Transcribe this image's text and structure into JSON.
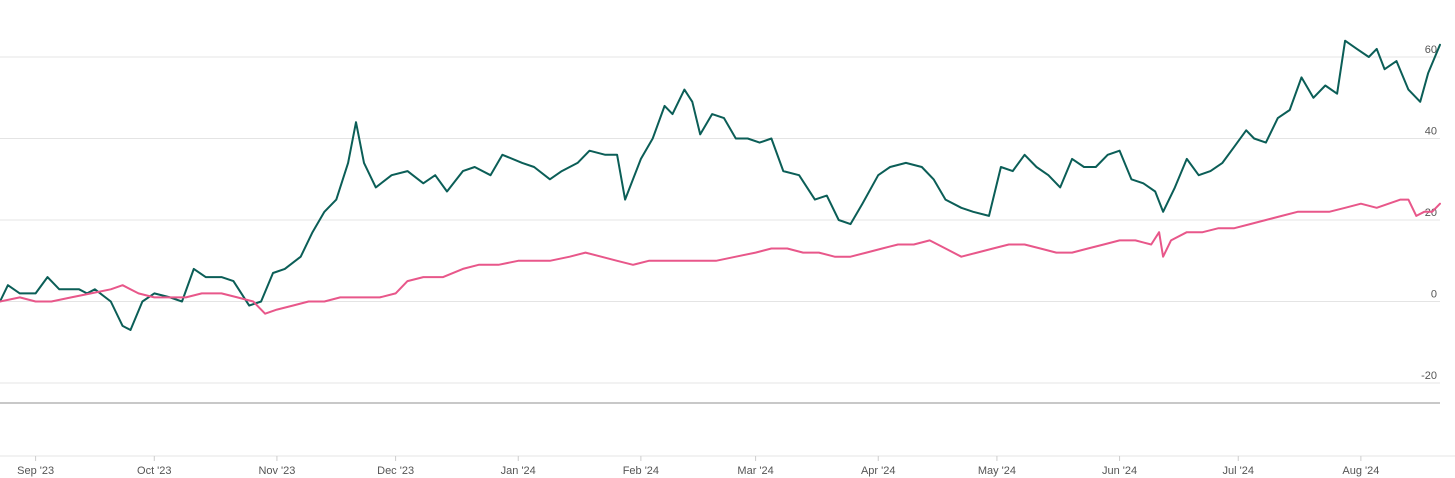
{
  "chart_data": {
    "type": "line",
    "yaxis": {
      "side": "right",
      "ticks": [
        60,
        40,
        20,
        0,
        -20
      ],
      "ylim": [
        -20,
        60
      ],
      "grid": true
    },
    "xaxis": {
      "ticks": [
        {
          "label": "Sep '23",
          "date": "2023-09-01"
        },
        {
          "label": "Oct '23",
          "date": "2023-10-01"
        },
        {
          "label": "Nov '23",
          "date": "2023-11-01"
        },
        {
          "label": "Dec '23",
          "date": "2023-12-01"
        },
        {
          "label": "Jan '24",
          "date": "2024-01-01"
        },
        {
          "label": "Feb '24",
          "date": "2024-02-01"
        },
        {
          "label": "Mar '24",
          "date": "2024-03-01"
        },
        {
          "label": "Apr '24",
          "date": "2024-04-01"
        },
        {
          "label": "May '24",
          "date": "2024-05-01"
        },
        {
          "label": "Jun '24",
          "date": "2024-06-01"
        },
        {
          "label": "Jul '24",
          "date": "2024-07-01"
        },
        {
          "label": "Aug '24",
          "date": "2024-08-01"
        }
      ],
      "range": [
        "2023-08-23",
        "2024-08-21"
      ]
    },
    "series": [
      {
        "color": "#0b5e57",
        "points": [
          [
            "2023-08-23",
            0
          ],
          [
            "2023-08-25",
            4
          ],
          [
            "2023-08-28",
            2
          ],
          [
            "2023-09-01",
            2
          ],
          [
            "2023-09-04",
            6
          ],
          [
            "2023-09-07",
            3
          ],
          [
            "2023-09-12",
            3
          ],
          [
            "2023-09-14",
            2
          ],
          [
            "2023-09-16",
            3
          ],
          [
            "2023-09-20",
            0
          ],
          [
            "2023-09-23",
            -6
          ],
          [
            "2023-09-25",
            -7
          ],
          [
            "2023-09-28",
            0
          ],
          [
            "2023-10-01",
            2
          ],
          [
            "2023-10-05",
            1
          ],
          [
            "2023-10-08",
            0
          ],
          [
            "2023-10-11",
            8
          ],
          [
            "2023-10-14",
            6
          ],
          [
            "2023-10-18",
            6
          ],
          [
            "2023-10-21",
            5
          ],
          [
            "2023-10-25",
            -1
          ],
          [
            "2023-10-28",
            0
          ],
          [
            "2023-10-31",
            7
          ],
          [
            "2023-11-03",
            8
          ],
          [
            "2023-11-07",
            11
          ],
          [
            "2023-11-10",
            17
          ],
          [
            "2023-11-13",
            22
          ],
          [
            "2023-11-16",
            25
          ],
          [
            "2023-11-19",
            34
          ],
          [
            "2023-11-21",
            44
          ],
          [
            "2023-11-23",
            34
          ],
          [
            "2023-11-26",
            28
          ],
          [
            "2023-11-30",
            31
          ],
          [
            "2023-12-04",
            32
          ],
          [
            "2023-12-08",
            29
          ],
          [
            "2023-12-11",
            31
          ],
          [
            "2023-12-14",
            27
          ],
          [
            "2023-12-18",
            32
          ],
          [
            "2023-12-21",
            33
          ],
          [
            "2023-12-25",
            31
          ],
          [
            "2023-12-28",
            36
          ],
          [
            "2024-01-02",
            34
          ],
          [
            "2024-01-05",
            33
          ],
          [
            "2024-01-09",
            30
          ],
          [
            "2024-01-12",
            32
          ],
          [
            "2024-01-16",
            34
          ],
          [
            "2024-01-19",
            37
          ],
          [
            "2024-01-23",
            36
          ],
          [
            "2024-01-26",
            36
          ],
          [
            "2024-01-28",
            25
          ],
          [
            "2024-02-01",
            35
          ],
          [
            "2024-02-04",
            40
          ],
          [
            "2024-02-07",
            48
          ],
          [
            "2024-02-09",
            46
          ],
          [
            "2024-02-12",
            52
          ],
          [
            "2024-02-14",
            49
          ],
          [
            "2024-02-16",
            41
          ],
          [
            "2024-02-19",
            46
          ],
          [
            "2024-02-22",
            45
          ],
          [
            "2024-02-25",
            40
          ],
          [
            "2024-02-28",
            40
          ],
          [
            "2024-03-02",
            39
          ],
          [
            "2024-03-05",
            40
          ],
          [
            "2024-03-08",
            32
          ],
          [
            "2024-03-12",
            31
          ],
          [
            "2024-03-16",
            25
          ],
          [
            "2024-03-19",
            26
          ],
          [
            "2024-03-22",
            20
          ],
          [
            "2024-03-25",
            19
          ],
          [
            "2024-03-28",
            24
          ],
          [
            "2024-04-01",
            31
          ],
          [
            "2024-04-04",
            33
          ],
          [
            "2024-04-08",
            34
          ],
          [
            "2024-04-12",
            33
          ],
          [
            "2024-04-15",
            30
          ],
          [
            "2024-04-18",
            25
          ],
          [
            "2024-04-22",
            23
          ],
          [
            "2024-04-25",
            22
          ],
          [
            "2024-04-29",
            21
          ],
          [
            "2024-05-02",
            33
          ],
          [
            "2024-05-05",
            32
          ],
          [
            "2024-05-08",
            36
          ],
          [
            "2024-05-11",
            33
          ],
          [
            "2024-05-14",
            31
          ],
          [
            "2024-05-17",
            28
          ],
          [
            "2024-05-20",
            35
          ],
          [
            "2024-05-23",
            33
          ],
          [
            "2024-05-26",
            33
          ],
          [
            "2024-05-29",
            36
          ],
          [
            "2024-06-01",
            37
          ],
          [
            "2024-06-04",
            30
          ],
          [
            "2024-06-07",
            29
          ],
          [
            "2024-06-10",
            27
          ],
          [
            "2024-06-12",
            22
          ],
          [
            "2024-06-15",
            28
          ],
          [
            "2024-06-18",
            35
          ],
          [
            "2024-06-21",
            31
          ],
          [
            "2024-06-24",
            32
          ],
          [
            "2024-06-27",
            34
          ],
          [
            "2024-06-30",
            38
          ],
          [
            "2024-07-03",
            42
          ],
          [
            "2024-07-05",
            40
          ],
          [
            "2024-07-08",
            39
          ],
          [
            "2024-07-11",
            45
          ],
          [
            "2024-07-14",
            47
          ],
          [
            "2024-07-17",
            55
          ],
          [
            "2024-07-20",
            50
          ],
          [
            "2024-07-23",
            53
          ],
          [
            "2024-07-26",
            51
          ],
          [
            "2024-07-28",
            64
          ],
          [
            "2024-07-31",
            62
          ],
          [
            "2024-08-03",
            60
          ],
          [
            "2024-08-05",
            62
          ],
          [
            "2024-08-07",
            57
          ],
          [
            "2024-08-10",
            59
          ],
          [
            "2024-08-13",
            52
          ],
          [
            "2024-08-16",
            49
          ],
          [
            "2024-08-18",
            56
          ],
          [
            "2024-08-21",
            63
          ]
        ]
      },
      {
        "color": "#e8578a",
        "points": [
          [
            "2023-08-23",
            0
          ],
          [
            "2023-08-28",
            1
          ],
          [
            "2023-09-01",
            0
          ],
          [
            "2023-09-05",
            0
          ],
          [
            "2023-09-10",
            1
          ],
          [
            "2023-09-15",
            2
          ],
          [
            "2023-09-20",
            3
          ],
          [
            "2023-09-23",
            4
          ],
          [
            "2023-09-27",
            2
          ],
          [
            "2023-10-01",
            1
          ],
          [
            "2023-10-05",
            1
          ],
          [
            "2023-10-09",
            1
          ],
          [
            "2023-10-13",
            2
          ],
          [
            "2023-10-18",
            2
          ],
          [
            "2023-10-22",
            1
          ],
          [
            "2023-10-26",
            0
          ],
          [
            "2023-10-29",
            -3
          ],
          [
            "2023-11-01",
            -2
          ],
          [
            "2023-11-05",
            -1
          ],
          [
            "2023-11-09",
            0
          ],
          [
            "2023-11-13",
            0
          ],
          [
            "2023-11-17",
            1
          ],
          [
            "2023-11-22",
            1
          ],
          [
            "2023-11-27",
            1
          ],
          [
            "2023-12-01",
            2
          ],
          [
            "2023-12-04",
            5
          ],
          [
            "2023-12-08",
            6
          ],
          [
            "2023-12-13",
            6
          ],
          [
            "2023-12-18",
            8
          ],
          [
            "2023-12-22",
            9
          ],
          [
            "2023-12-27",
            9
          ],
          [
            "2024-01-01",
            10
          ],
          [
            "2024-01-05",
            10
          ],
          [
            "2024-01-09",
            10
          ],
          [
            "2024-01-14",
            11
          ],
          [
            "2024-01-18",
            12
          ],
          [
            "2024-01-22",
            11
          ],
          [
            "2024-01-26",
            10
          ],
          [
            "2024-01-30",
            9
          ],
          [
            "2024-02-03",
            10
          ],
          [
            "2024-02-07",
            10
          ],
          [
            "2024-02-11",
            10
          ],
          [
            "2024-02-15",
            10
          ],
          [
            "2024-02-20",
            10
          ],
          [
            "2024-02-25",
            11
          ],
          [
            "2024-03-01",
            12
          ],
          [
            "2024-03-05",
            13
          ],
          [
            "2024-03-09",
            13
          ],
          [
            "2024-03-13",
            12
          ],
          [
            "2024-03-17",
            12
          ],
          [
            "2024-03-21",
            11
          ],
          [
            "2024-03-25",
            11
          ],
          [
            "2024-03-29",
            12
          ],
          [
            "2024-04-02",
            13
          ],
          [
            "2024-04-06",
            14
          ],
          [
            "2024-04-10",
            14
          ],
          [
            "2024-04-14",
            15
          ],
          [
            "2024-04-18",
            13
          ],
          [
            "2024-04-22",
            11
          ],
          [
            "2024-04-26",
            12
          ],
          [
            "2024-04-30",
            13
          ],
          [
            "2024-05-04",
            14
          ],
          [
            "2024-05-08",
            14
          ],
          [
            "2024-05-12",
            13
          ],
          [
            "2024-05-16",
            12
          ],
          [
            "2024-05-20",
            12
          ],
          [
            "2024-05-24",
            13
          ],
          [
            "2024-05-28",
            14
          ],
          [
            "2024-06-01",
            15
          ],
          [
            "2024-06-05",
            15
          ],
          [
            "2024-06-09",
            14
          ],
          [
            "2024-06-11",
            17
          ],
          [
            "2024-06-12",
            11
          ],
          [
            "2024-06-14",
            15
          ],
          [
            "2024-06-18",
            17
          ],
          [
            "2024-06-22",
            17
          ],
          [
            "2024-06-26",
            18
          ],
          [
            "2024-06-30",
            18
          ],
          [
            "2024-07-04",
            19
          ],
          [
            "2024-07-08",
            20
          ],
          [
            "2024-07-12",
            21
          ],
          [
            "2024-07-16",
            22
          ],
          [
            "2024-07-20",
            22
          ],
          [
            "2024-07-24",
            22
          ],
          [
            "2024-07-28",
            23
          ],
          [
            "2024-08-01",
            24
          ],
          [
            "2024-08-05",
            23
          ],
          [
            "2024-08-08",
            24
          ],
          [
            "2024-08-11",
            25
          ],
          [
            "2024-08-13",
            25
          ],
          [
            "2024-08-15",
            21
          ],
          [
            "2024-08-17",
            22
          ],
          [
            "2024-08-19",
            22
          ],
          [
            "2024-08-21",
            24
          ]
        ]
      }
    ]
  }
}
